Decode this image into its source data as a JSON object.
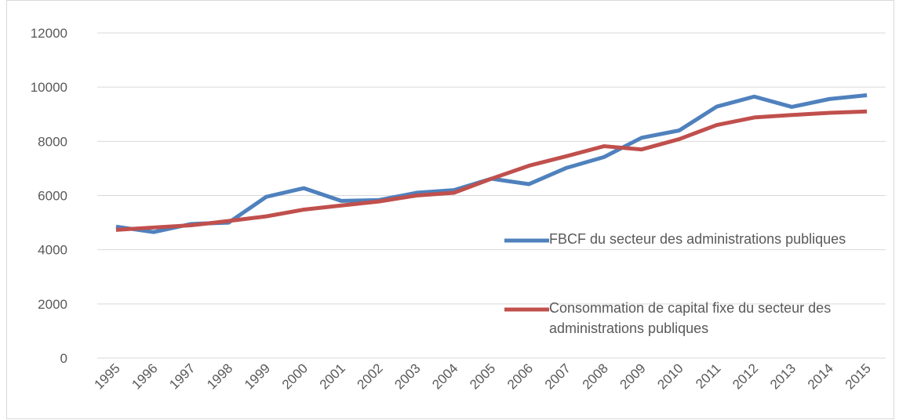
{
  "chart_data": {
    "type": "line",
    "categories": [
      "1995",
      "1996",
      "1997",
      "1998",
      "1999",
      "2000",
      "2001",
      "2002",
      "2003",
      "2004",
      "2005",
      "2006",
      "2007",
      "2008",
      "2009",
      "2010",
      "2011",
      "2012",
      "2013",
      "2014",
      "2015"
    ],
    "series": [
      {
        "name": "FBCF du secteur des administrations publiques",
        "color": "#4f81bd",
        "values": [
          4850,
          4650,
          4950,
          5000,
          5950,
          6270,
          5800,
          5830,
          6100,
          6200,
          6620,
          6420,
          7020,
          7420,
          8130,
          8400,
          9280,
          9650,
          9270,
          9560,
          9700
        ]
      },
      {
        "name": "Consommation de capital fixe du secteur des administrations publiques",
        "color": "#c0504d",
        "values": [
          4730,
          4820,
          4900,
          5060,
          5230,
          5480,
          5630,
          5780,
          6000,
          6100,
          6620,
          7100,
          7450,
          7820,
          7700,
          8080,
          8600,
          8880,
          8970,
          9050,
          9100
        ]
      }
    ],
    "ylim": [
      0,
      12000
    ],
    "yticks": [
      0,
      2000,
      4000,
      6000,
      8000,
      10000,
      12000
    ],
    "grid": true,
    "legend": "right"
  }
}
